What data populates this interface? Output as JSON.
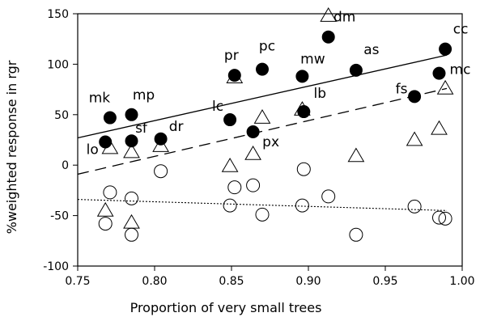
{
  "chart_data": {
    "type": "scatter",
    "xlabel": "Proportion of very small trees",
    "ylabel": "%weighted response in rgr",
    "xlim": [
      0.75,
      1.0
    ],
    "ylim": [
      -100,
      150
    ],
    "x_ticks": [
      "0.75",
      "0.80",
      "0.85",
      "0.90",
      "0.95",
      "1.00"
    ],
    "y_ticks": [
      "-100",
      "-50",
      "0",
      "50",
      "100",
      "150"
    ],
    "grid": false,
    "legend": "none",
    "series": [
      {
        "marker": "filled-circle",
        "points": [
          {
            "x": 0.768,
            "y": 23,
            "label": "lo"
          },
          {
            "x": 0.771,
            "y": 47,
            "label": "mk"
          },
          {
            "x": 0.785,
            "y": 24,
            "label": "sf"
          },
          {
            "x": 0.785,
            "y": 50,
            "label": "mp"
          },
          {
            "x": 0.804,
            "y": 26,
            "label": "dr"
          },
          {
            "x": 0.849,
            "y": 45,
            "label": "lc"
          },
          {
            "x": 0.852,
            "y": 89,
            "label": "pr"
          },
          {
            "x": 0.864,
            "y": 33,
            "label": "px"
          },
          {
            "x": 0.87,
            "y": 95,
            "label": "pc"
          },
          {
            "x": 0.896,
            "y": 88,
            "label": "mw"
          },
          {
            "x": 0.897,
            "y": 53,
            "label": "lb"
          },
          {
            "x": 0.913,
            "y": 127,
            "label": "dm"
          },
          {
            "x": 0.931,
            "y": 94,
            "label": "as"
          },
          {
            "x": 0.969,
            "y": 68,
            "label": "fs"
          },
          {
            "x": 0.985,
            "y": 91,
            "label": "mc"
          },
          {
            "x": 0.989,
            "y": 115,
            "label": "cc"
          }
        ]
      },
      {
        "marker": "open-triangle",
        "points": [
          {
            "x": 0.768,
            "y": -45
          },
          {
            "x": 0.771,
            "y": 17
          },
          {
            "x": 0.785,
            "y": 13
          },
          {
            "x": 0.785,
            "y": -57
          },
          {
            "x": 0.804,
            "y": 19
          },
          {
            "x": 0.849,
            "y": -1
          },
          {
            "x": 0.852,
            "y": 87
          },
          {
            "x": 0.864,
            "y": 11
          },
          {
            "x": 0.87,
            "y": 47
          },
          {
            "x": 0.896,
            "y": 55
          },
          {
            "x": 0.913,
            "y": 148
          },
          {
            "x": 0.931,
            "y": 9
          },
          {
            "x": 0.969,
            "y": 25
          },
          {
            "x": 0.985,
            "y": 36
          },
          {
            "x": 0.989,
            "y": 76
          }
        ]
      },
      {
        "marker": "open-circle",
        "points": [
          {
            "x": 0.768,
            "y": -58
          },
          {
            "x": 0.771,
            "y": -27
          },
          {
            "x": 0.785,
            "y": -33
          },
          {
            "x": 0.785,
            "y": -69
          },
          {
            "x": 0.804,
            "y": -6
          },
          {
            "x": 0.849,
            "y": -40
          },
          {
            "x": 0.852,
            "y": -22
          },
          {
            "x": 0.864,
            "y": -20
          },
          {
            "x": 0.87,
            "y": -49
          },
          {
            "x": 0.896,
            "y": -40
          },
          {
            "x": 0.897,
            "y": -4
          },
          {
            "x": 0.913,
            "y": -31
          },
          {
            "x": 0.931,
            "y": -69
          },
          {
            "x": 0.969,
            "y": -41
          },
          {
            "x": 0.985,
            "y": -52
          },
          {
            "x": 0.989,
            "y": -53
          }
        ]
      }
    ],
    "trend_lines": [
      {
        "style": "solid",
        "from": [
          0.75,
          27
        ],
        "to": [
          0.99,
          109
        ]
      },
      {
        "style": "dashed",
        "from": [
          0.75,
          -9
        ],
        "to": [
          0.99,
          76
        ]
      },
      {
        "style": "dotted",
        "from": [
          0.75,
          -34
        ],
        "to": [
          0.99,
          -45
        ]
      }
    ]
  }
}
